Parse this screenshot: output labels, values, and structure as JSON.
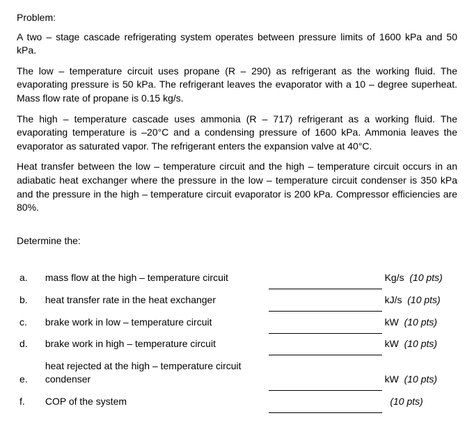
{
  "heading": "Problem:",
  "paragraphs": {
    "p1": "A two – stage cascade refrigerating system operates between pressure limits of 1600 kPa and 50 kPa.",
    "p2": "The low – temperature circuit uses propane (R – 290) as refrigerant as the working fluid. The evaporating pressure is 50 kPa. The refrigerant leaves the evaporator with a 10 – degree superheat. Mass flow rate of propane is 0.15 kg/s.",
    "p3": "The high – temperature cascade uses ammonia (R – 717) refrigerant as a working fluid. The evaporating temperature is –20°C and a condensing pressure of 1600 kPa. Ammonia leaves the evaporator as saturated vapor. The refrigerant enters the expansion valve at 40°C.",
    "p4": "Heat transfer between the low – temperature circuit and the high – temperature circuit occurs in an adiabatic heat exchanger where the pressure in the low – temperature circuit condenser is 350 kPa and the pressure in the high – temperature circuit evaporator is 200 kPa. Compressor efficiencies are 80%."
  },
  "determine_label": "Determine the:",
  "questions": [
    {
      "letter": "a.",
      "label": "mass flow at the high – temperature circuit",
      "unit": "Kg/s",
      "pts": "(10 pts)"
    },
    {
      "letter": "b.",
      "label": "heat transfer rate in the heat exchanger",
      "unit": "kJ/s",
      "pts": "(10 pts)"
    },
    {
      "letter": "c.",
      "label": "brake work in low – temperature circuit",
      "unit": "kW",
      "pts": "(10 pts)"
    },
    {
      "letter": "d.",
      "label": "brake work in high – temperature circuit",
      "unit": "kW",
      "pts": "(10 pts)"
    },
    {
      "letter": "e.",
      "label": "heat rejected at the high – temperature circuit condenser",
      "unit": "kW",
      "pts": "(10 pts)"
    },
    {
      "letter": "f.",
      "label": "COP of the system",
      "unit": "",
      "pts": "(10 pts)"
    }
  ],
  "colors": {
    "text": "#000000",
    "bg": "#ffffff",
    "line": "#000000"
  },
  "fontsize": 14
}
